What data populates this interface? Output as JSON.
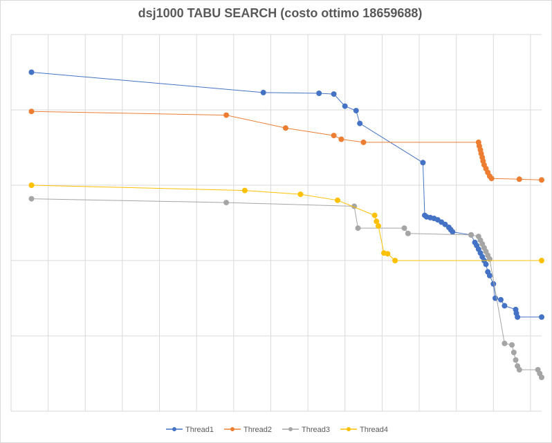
{
  "chart_data": {
    "type": "line",
    "title": "dsj1000 TABU SEARCH (costo ottimo 18659688)",
    "xlabel": "",
    "ylabel": "",
    "x_range": [
      0,
      14.3
    ],
    "y_range": [
      0,
      5
    ],
    "grid": true,
    "legend": "bottom",
    "series": [
      {
        "name": "Thread1",
        "color": "#4472C4",
        "points": [
          [
            0.55,
            4.5
          ],
          [
            6.8,
            4.23
          ],
          [
            8.3,
            4.22
          ],
          [
            8.7,
            4.21
          ],
          [
            9.0,
            4.05
          ],
          [
            9.3,
            3.99
          ],
          [
            9.4,
            3.82
          ],
          [
            11.1,
            3.3
          ],
          [
            11.15,
            2.6
          ],
          [
            11.2,
            2.58
          ],
          [
            11.3,
            2.57
          ],
          [
            11.4,
            2.56
          ],
          [
            11.5,
            2.54
          ],
          [
            11.6,
            2.51
          ],
          [
            11.7,
            2.48
          ],
          [
            11.8,
            2.44
          ],
          [
            11.85,
            2.41
          ],
          [
            11.9,
            2.38
          ],
          [
            12.4,
            2.34
          ],
          [
            12.5,
            2.24
          ],
          [
            12.55,
            2.2
          ],
          [
            12.6,
            2.15
          ],
          [
            12.65,
            2.1
          ],
          [
            12.7,
            2.05
          ],
          [
            12.75,
            2.0
          ],
          [
            12.8,
            1.95
          ],
          [
            12.85,
            1.85
          ],
          [
            12.9,
            1.8
          ],
          [
            13.0,
            1.69
          ],
          [
            13.05,
            1.5
          ],
          [
            13.2,
            1.48
          ],
          [
            13.3,
            1.4
          ],
          [
            13.6,
            1.35
          ],
          [
            13.62,
            1.3
          ],
          [
            13.65,
            1.25
          ],
          [
            14.3,
            1.25
          ]
        ]
      },
      {
        "name": "Thread2",
        "color": "#ED7D31",
        "points": [
          [
            0.55,
            3.98
          ],
          [
            5.8,
            3.93
          ],
          [
            7.4,
            3.76
          ],
          [
            8.7,
            3.66
          ],
          [
            8.9,
            3.61
          ],
          [
            9.5,
            3.57
          ],
          [
            12.6,
            3.57
          ],
          [
            12.62,
            3.52
          ],
          [
            12.65,
            3.47
          ],
          [
            12.67,
            3.42
          ],
          [
            12.7,
            3.37
          ],
          [
            12.72,
            3.32
          ],
          [
            12.75,
            3.27
          ],
          [
            12.8,
            3.22
          ],
          [
            12.85,
            3.17
          ],
          [
            12.9,
            3.12
          ],
          [
            12.95,
            3.09
          ],
          [
            13.7,
            3.08
          ],
          [
            14.3,
            3.07
          ]
        ]
      },
      {
        "name": "Thread3",
        "color": "#A5A5A5",
        "points": [
          [
            0.55,
            2.82
          ],
          [
            5.8,
            2.77
          ],
          [
            9.25,
            2.72
          ],
          [
            9.35,
            2.43
          ],
          [
            10.6,
            2.43
          ],
          [
            10.7,
            2.36
          ],
          [
            12.4,
            2.34
          ],
          [
            12.6,
            2.32
          ],
          [
            12.65,
            2.27
          ],
          [
            12.7,
            2.22
          ],
          [
            12.75,
            2.17
          ],
          [
            12.8,
            2.12
          ],
          [
            12.85,
            2.07
          ],
          [
            12.9,
            2.02
          ],
          [
            13.3,
            0.9
          ],
          [
            13.5,
            0.88
          ],
          [
            13.55,
            0.78
          ],
          [
            13.6,
            0.68
          ],
          [
            13.65,
            0.6
          ],
          [
            13.7,
            0.55
          ],
          [
            14.2,
            0.55
          ],
          [
            14.25,
            0.5
          ],
          [
            14.3,
            0.45
          ]
        ]
      },
      {
        "name": "Thread4",
        "color": "#FFC000",
        "points": [
          [
            0.55,
            3.0
          ],
          [
            6.3,
            2.93
          ],
          [
            7.8,
            2.88
          ],
          [
            8.8,
            2.8
          ],
          [
            9.8,
            2.6
          ],
          [
            9.85,
            2.52
          ],
          [
            9.9,
            2.46
          ],
          [
            10.05,
            2.1
          ],
          [
            10.15,
            2.09
          ],
          [
            10.35,
            2.0
          ],
          [
            14.3,
            2.0
          ]
        ]
      }
    ]
  }
}
